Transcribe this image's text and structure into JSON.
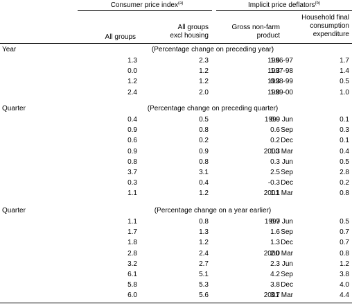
{
  "header": {
    "cpi_group": "Consumer price index",
    "cpi_note": "(a)",
    "ipd_group": "Implicit price deflators",
    "ipd_note": "(b)",
    "col1": "All groups",
    "col2_line1": "All groups",
    "col2_line2": "excl housing",
    "col3_line1": "Gross non-farm",
    "col3_line2": "product",
    "col4_line1": "Household final",
    "col4_line2": "consumption",
    "col4_line3": "expenditure"
  },
  "sections": [
    {
      "label": "Year",
      "subtitle": "(Percentage change on preceding year)",
      "rows": [
        {
          "period": "1996-97",
          "values": [
            "1.3",
            "2.3",
            "1.6",
            "1.7"
          ]
        },
        {
          "period": "1997-98",
          "values": [
            "0.0",
            "1.2",
            "1.3",
            "1.4"
          ]
        },
        {
          "period": "1998-99",
          "values": [
            "1.2",
            "1.2",
            "0.3",
            "0.5"
          ]
        },
        {
          "period": "1999-00",
          "values": [
            "2.4",
            "2.0",
            "1.8",
            "1.0"
          ]
        }
      ]
    },
    {
      "label": "Quarter",
      "subtitle": "(Percentage change on preceding quarter)",
      "rows": [
        {
          "period": "1999 Jun",
          "values": [
            "0.4",
            "0.5",
            "0.0",
            "0.1"
          ]
        },
        {
          "period": "Sep",
          "values": [
            "0.9",
            "0.8",
            "0.6",
            "0.3"
          ]
        },
        {
          "period": "Dec",
          "values": [
            "0.6",
            "0.2",
            "0.2",
            "0.1"
          ]
        },
        {
          "period": "2000 Mar",
          "values": [
            "0.9",
            "0.9",
            "1.3",
            "0.4"
          ]
        },
        {
          "period": "Jun",
          "values": [
            "0.8",
            "0.8",
            "0.3",
            "0.5"
          ]
        },
        {
          "period": "Sep",
          "values": [
            "3.7",
            "3.1",
            "2.5",
            "2.8"
          ]
        },
        {
          "period": "Dec",
          "values": [
            "0.3",
            "0.4",
            "-0.3",
            "0.2"
          ]
        },
        {
          "period": "2001 Mar",
          "values": [
            "1.1",
            "1.2",
            "1.1",
            "0.8"
          ]
        }
      ]
    },
    {
      "label": "Quarter",
      "subtitle": "(Percentage change on a year earlier)",
      "rows": [
        {
          "period": "1999 Jun",
          "values": [
            "1.1",
            "0.8",
            "0.7",
            "0.5"
          ]
        },
        {
          "period": "Sep",
          "values": [
            "1.7",
            "1.3",
            "1.6",
            "0.7"
          ]
        },
        {
          "period": "Dec",
          "values": [
            "1.8",
            "1.2",
            "1.3",
            "0.7"
          ]
        },
        {
          "period": "2000 Mar",
          "values": [
            "2.8",
            "2.4",
            "2.0",
            "0.8"
          ]
        },
        {
          "period": "Jun",
          "values": [
            "3.2",
            "2.7",
            "2.3",
            "1.2"
          ]
        },
        {
          "period": "Sep",
          "values": [
            "6.1",
            "5.1",
            "4.2",
            "3.8"
          ]
        },
        {
          "period": "Dec",
          "values": [
            "5.8",
            "5.3",
            "3.8",
            "4.0"
          ]
        },
        {
          "period": "2001 Mar",
          "values": [
            "6.0",
            "5.6",
            "3.7",
            "4.4"
          ]
        }
      ]
    }
  ]
}
